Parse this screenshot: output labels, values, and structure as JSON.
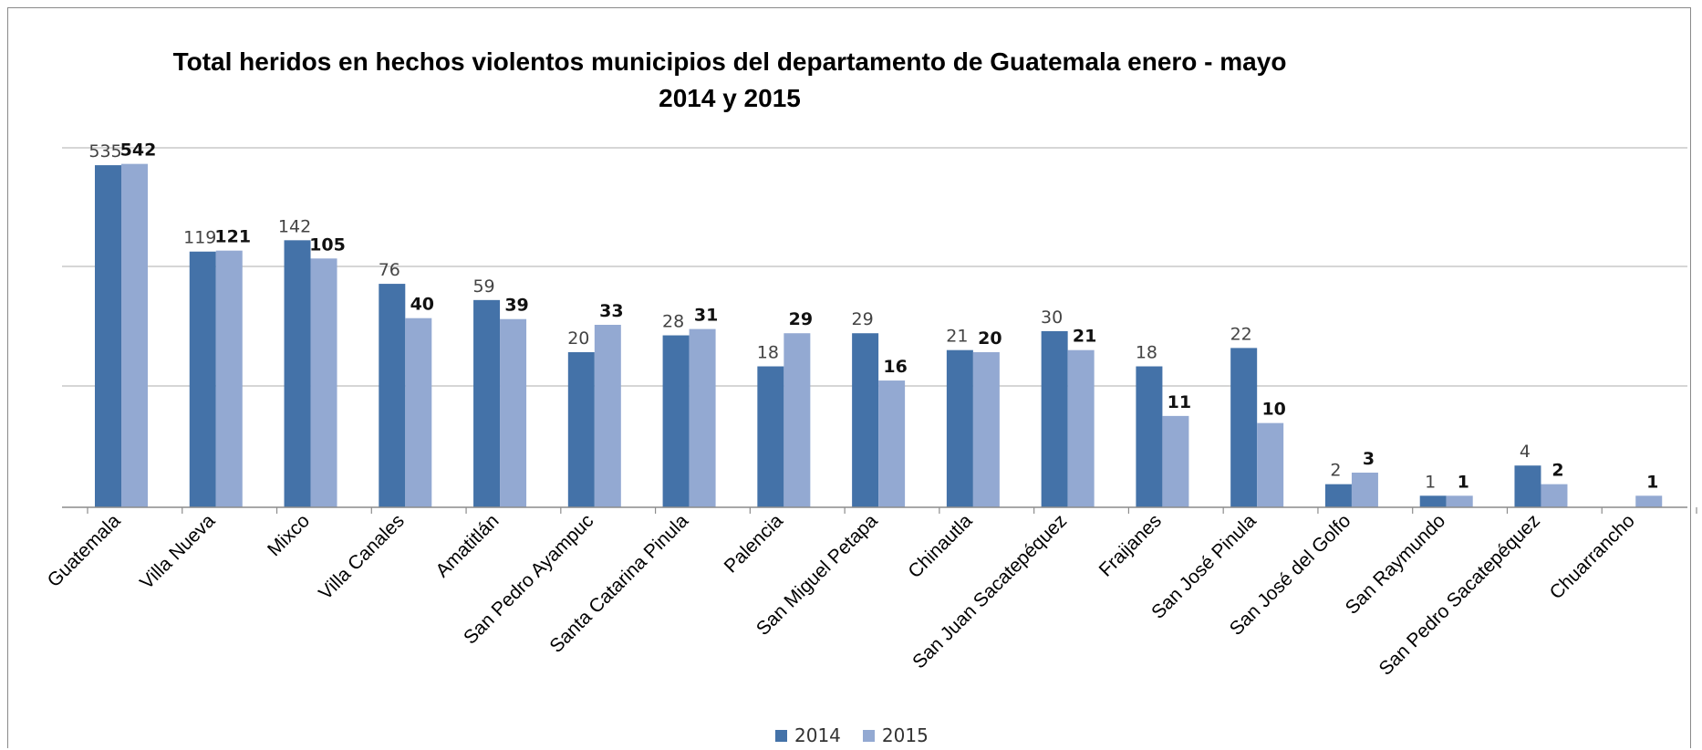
{
  "chart_data": {
    "type": "bar",
    "title": "Total heridos en hechos violentos municipios del departamento de Guatemala enero - mayo",
    "subtitle": "2014 y 2015",
    "xlabel": "",
    "ylabel": "",
    "grid": true,
    "legend_position": "bottom",
    "categories": [
      "Guatemala",
      "Villa Nueva",
      "Mixco",
      "Villa Canales",
      "Amatitlán",
      "San Pedro Ayampuc",
      "Santa Catarina Pinula",
      "Palencia",
      "San Miguel Petapa",
      "Chinautla",
      "San Juan Sacatepéquez",
      "Fraijanes",
      "San José Pinula",
      "San José del Golfo",
      "San Raymundo",
      "San Pedro Sacatepéquez",
      "Chuarrancho"
    ],
    "series": [
      {
        "name": "2014",
        "color": "#4472a8",
        "values": [
          535,
          119,
          142,
          76,
          59,
          20,
          28,
          18,
          29,
          21,
          30,
          18,
          22,
          2,
          1,
          4,
          null
        ],
        "labels": [
          "535",
          "119",
          "142",
          "76",
          "59",
          "20",
          "28",
          "18",
          "29",
          "21",
          "30",
          "18",
          "22",
          "2",
          "1",
          "4",
          ""
        ]
      },
      {
        "name": "2015",
        "color": "#93a9d2",
        "values": [
          542,
          121,
          105,
          40,
          39,
          33,
          31,
          29,
          16,
          20,
          21,
          11,
          10,
          3,
          1,
          2,
          1
        ],
        "labels": [
          "542",
          "121",
          "105",
          "40",
          "39",
          "33",
          "31",
          "29",
          "16",
          "20",
          "21",
          "11",
          "10",
          "3",
          "1",
          "2",
          "1"
        ]
      }
    ]
  }
}
